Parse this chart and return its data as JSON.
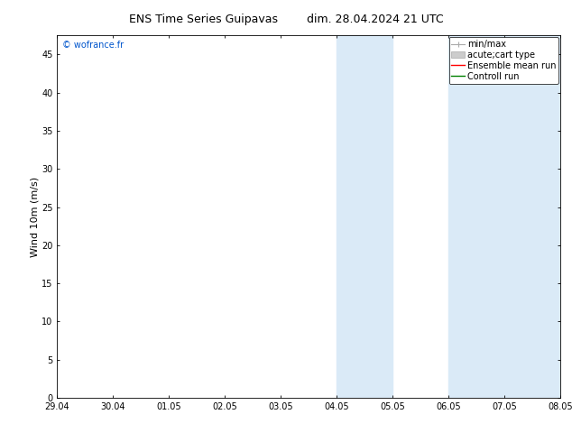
{
  "title_left": "ENS Time Series Guipavas",
  "title_right": "dim. 28.04.2024 21 UTC",
  "ylabel": "Wind 10m (m/s)",
  "ylim": [
    0,
    47.5
  ],
  "yticks": [
    0,
    5,
    10,
    15,
    20,
    25,
    30,
    35,
    40,
    45
  ],
  "xtick_labels": [
    "29.04",
    "30.04",
    "01.05",
    "02.05",
    "03.05",
    "04.05",
    "05.05",
    "06.05",
    "07.05",
    "08.05"
  ],
  "num_xticks": 10,
  "shaded_regions": [
    {
      "xstart": 5,
      "xend": 6,
      "color": "#daeaf7"
    },
    {
      "xstart": 7,
      "xend": 9,
      "color": "#daeaf7"
    }
  ],
  "watermark_text": "© wofrance.fr",
  "watermark_color": "#0055cc",
  "background_color": "#ffffff",
  "title_fontsize": 9,
  "ylabel_fontsize": 8,
  "tick_fontsize": 7,
  "legend_fontsize": 7,
  "minmax_color": "#aaaaaa",
  "acute_color": "#cccccc",
  "ensemble_color": "red",
  "control_color": "green"
}
